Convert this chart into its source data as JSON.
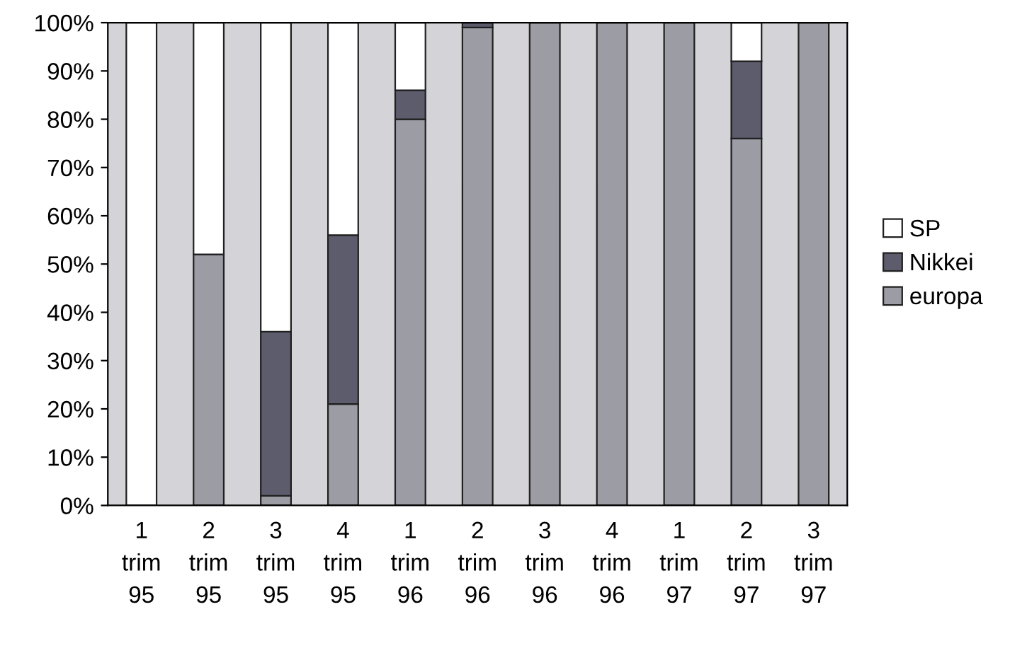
{
  "chart_data": {
    "type": "bar",
    "stacked": true,
    "categories": [
      "1\ntrim\n95",
      "2\ntrim\n95",
      "3\ntrim\n95",
      "4\ntrim\n95",
      "1\ntrim\n96",
      "2\ntrim\n96",
      "3\ntrim\n96",
      "4\ntrim\n96",
      "1\ntrim\n97",
      "2\ntrim\n97",
      "3\ntrim\n97"
    ],
    "series": [
      {
        "name": "europa",
        "color": "#9c9ca4",
        "values": [
          0,
          52,
          2,
          21,
          80,
          99,
          100,
          100,
          100,
          76,
          100
        ]
      },
      {
        "name": "Nikkei",
        "color": "#5c5c6c",
        "values": [
          0,
          0,
          34,
          35,
          6,
          1,
          0,
          0,
          0,
          16,
          0
        ]
      },
      {
        "name": "SP",
        "color": "#ffffff",
        "values": [
          100,
          48,
          64,
          44,
          14,
          0,
          0,
          0,
          0,
          8,
          0
        ]
      }
    ],
    "ylim": [
      0,
      100
    ],
    "yticks": [
      {
        "value": 0,
        "label": "0%"
      },
      {
        "value": 10,
        "label": "10%"
      },
      {
        "value": 20,
        "label": "20%"
      },
      {
        "value": 30,
        "label": "30%"
      },
      {
        "value": 40,
        "label": "40%"
      },
      {
        "value": 50,
        "label": "50%"
      },
      {
        "value": 60,
        "label": "60%"
      },
      {
        "value": 70,
        "label": "70%"
      },
      {
        "value": 80,
        "label": "80%"
      },
      {
        "value": 90,
        "label": "90%"
      },
      {
        "value": 100,
        "label": "100%"
      }
    ],
    "legend": "right"
  }
}
